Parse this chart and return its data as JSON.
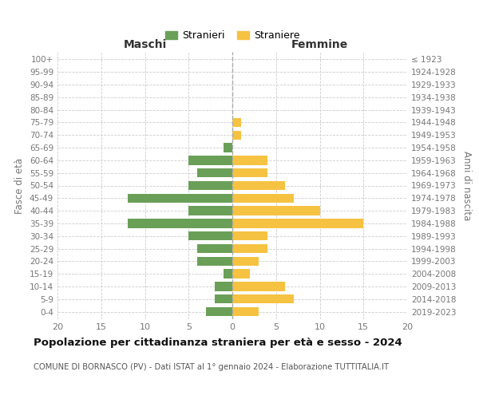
{
  "age_groups_bottom_to_top": [
    "0-4",
    "5-9",
    "10-14",
    "15-19",
    "20-24",
    "25-29",
    "30-34",
    "35-39",
    "40-44",
    "45-49",
    "50-54",
    "55-59",
    "60-64",
    "65-69",
    "70-74",
    "75-79",
    "80-84",
    "85-89",
    "90-94",
    "95-99",
    "100+"
  ],
  "birth_years_bottom_to_top": [
    "2019-2023",
    "2014-2018",
    "2009-2013",
    "2004-2008",
    "1999-2003",
    "1994-1998",
    "1989-1993",
    "1984-1988",
    "1979-1983",
    "1974-1978",
    "1969-1973",
    "1964-1968",
    "1959-1963",
    "1954-1958",
    "1949-1953",
    "1944-1948",
    "1939-1943",
    "1934-1938",
    "1929-1933",
    "1924-1928",
    "≤ 1923"
  ],
  "males_bottom_to_top": [
    3,
    2,
    2,
    1,
    4,
    4,
    5,
    12,
    5,
    12,
    5,
    4,
    5,
    1,
    0,
    0,
    0,
    0,
    0,
    0,
    0
  ],
  "females_bottom_to_top": [
    3,
    7,
    6,
    2,
    3,
    4,
    4,
    15,
    10,
    7,
    6,
    4,
    4,
    0,
    1,
    1,
    0,
    0,
    0,
    0,
    0
  ],
  "male_color": "#6a9f58",
  "female_color": "#f5c242",
  "background_color": "#ffffff",
  "grid_color": "#cccccc",
  "title": "Popolazione per cittadinanza straniera per età e sesso - 2024",
  "subtitle": "COMUNE DI BORNASCO (PV) - Dati ISTAT al 1° gennaio 2024 - Elaborazione TUTTITALIA.IT",
  "xlabel_left": "Maschi",
  "xlabel_right": "Femmine",
  "ylabel_left": "Fasce di età",
  "ylabel_right": "Anni di nascita",
  "legend_male": "Stranieri",
  "legend_female": "Straniere",
  "xlim": 20,
  "figsize": [
    6.0,
    5.0
  ],
  "dpi": 100
}
